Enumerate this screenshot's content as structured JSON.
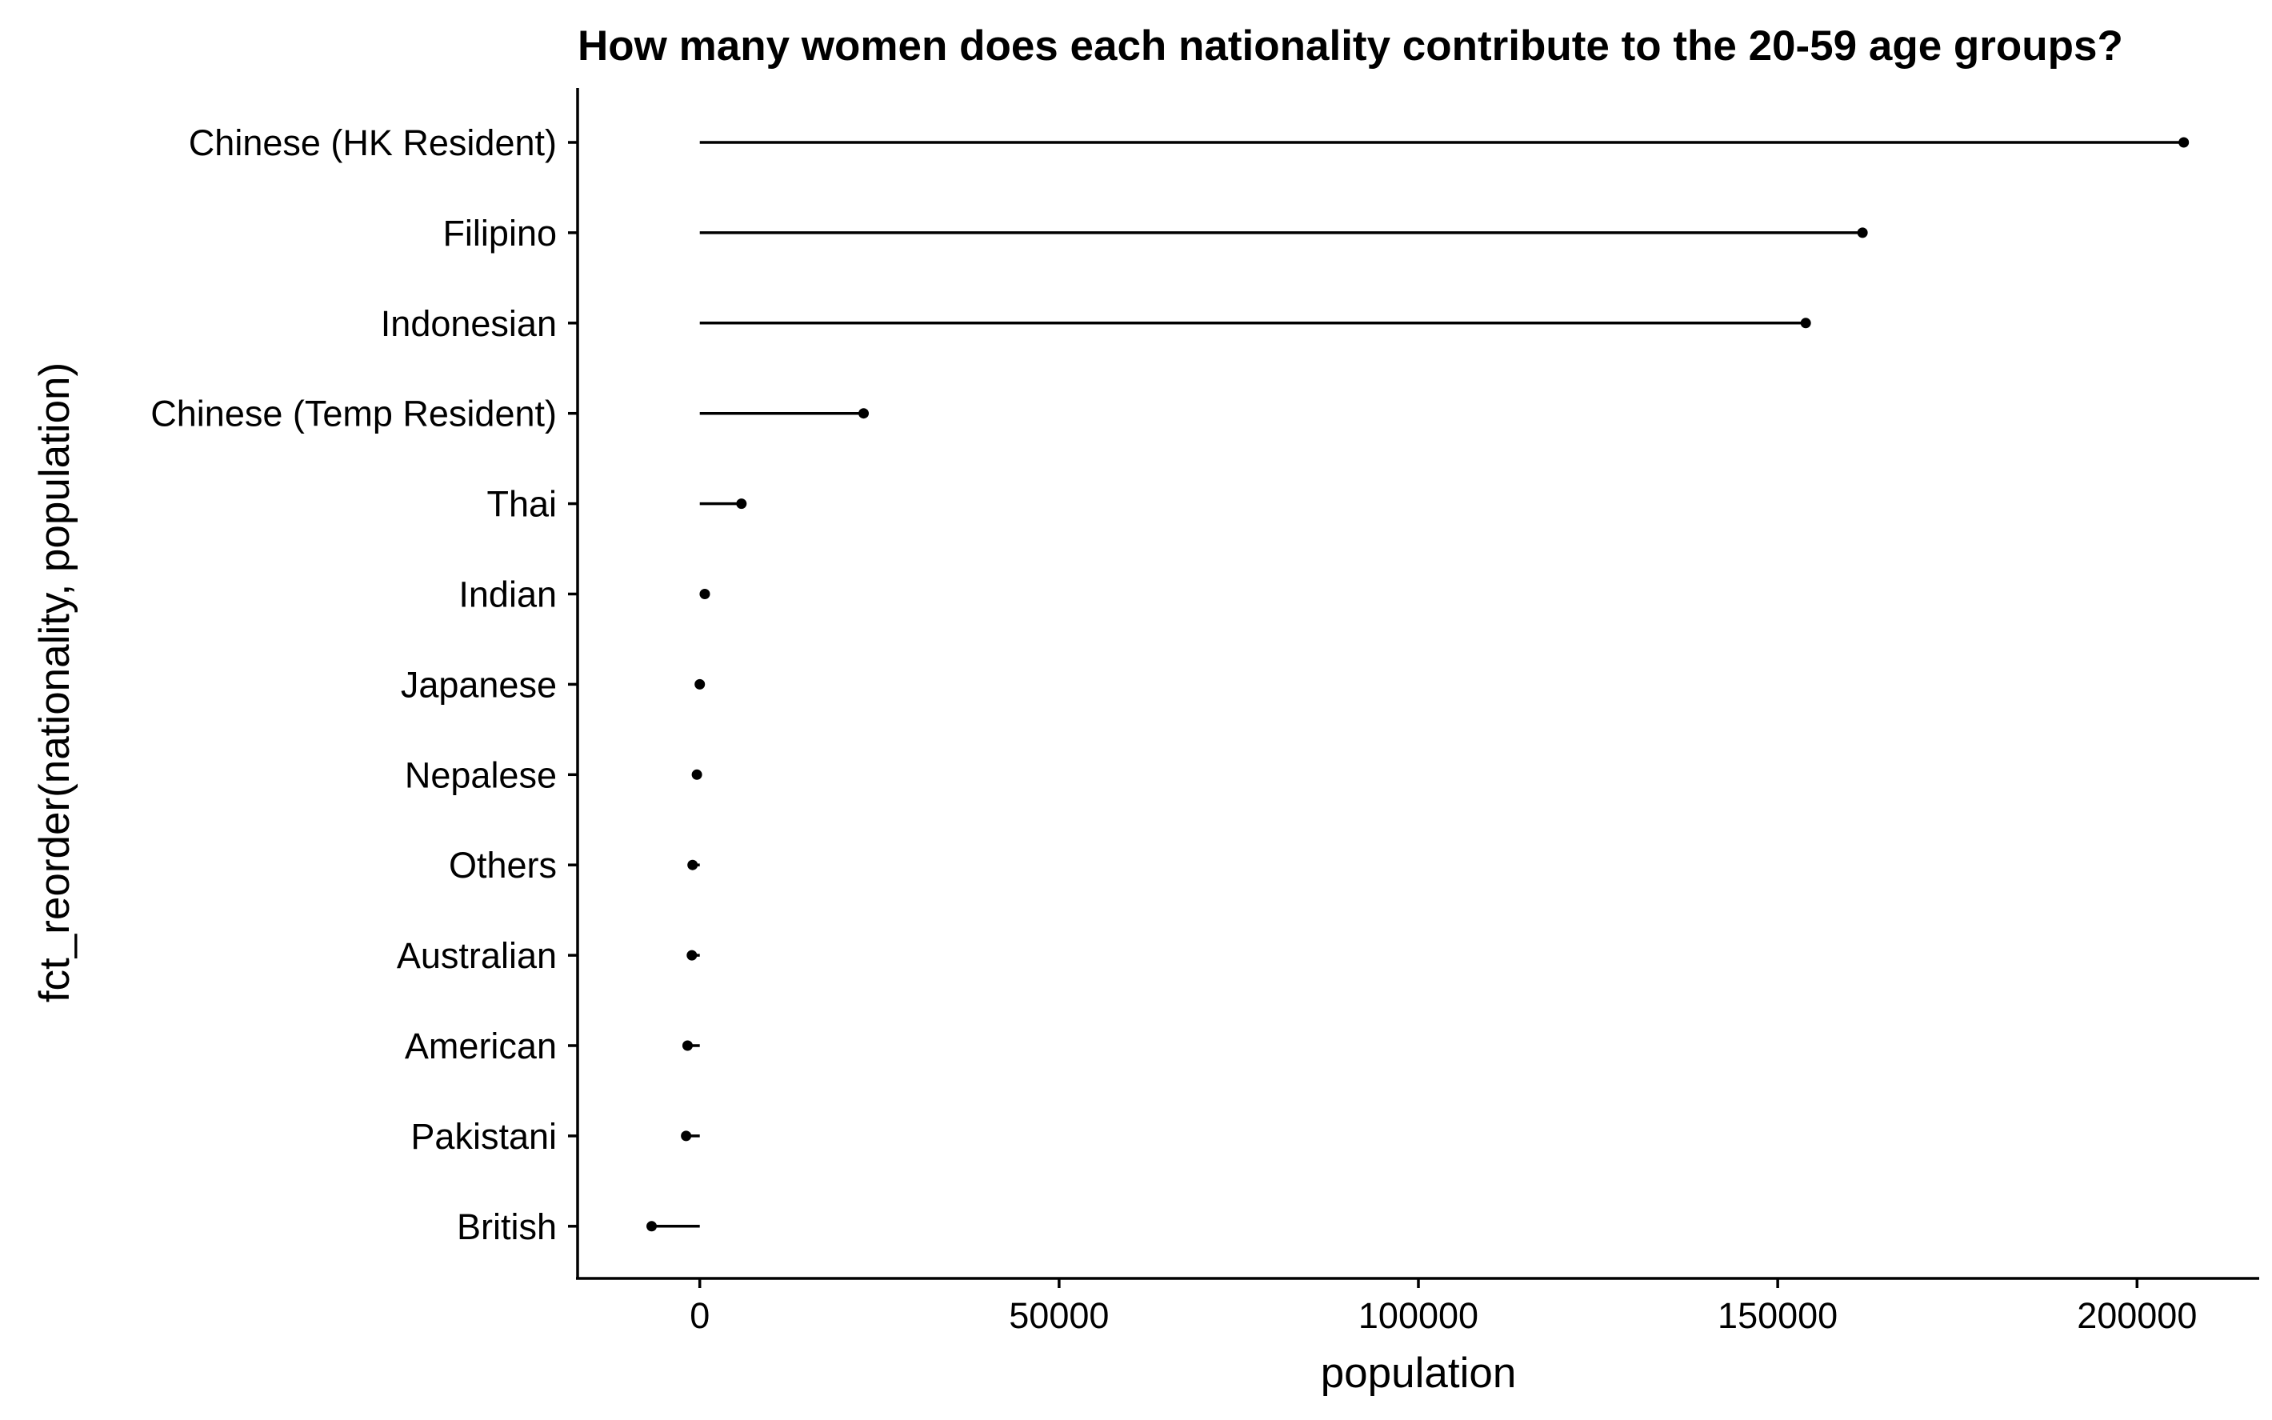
{
  "chart_data": {
    "type": "lollipop",
    "title": "How many women does each nationality contribute to the 20-59 age groups?",
    "xlabel": "population",
    "ylabel": "fct_reorder(nationality, population)",
    "xlim": [
      -17000,
      217000
    ],
    "xticks": [
      0,
      50000,
      100000,
      150000,
      200000
    ],
    "xtick_labels": [
      "0",
      "50000",
      "100000",
      "150000",
      "200000"
    ],
    "grid": false,
    "categories": [
      "Chinese (HK Resident)",
      "Filipino",
      "Indonesian",
      "Chinese (Temp Resident)",
      "Thai",
      "Indian",
      "Japanese",
      "Nepalese",
      "Others",
      "Australian",
      "American",
      "Pakistani",
      "British"
    ],
    "values": [
      206500,
      161800,
      153900,
      22800,
      5800,
      700,
      0,
      -400,
      -1000,
      -1100,
      -1700,
      -1900,
      -6700
    ]
  }
}
